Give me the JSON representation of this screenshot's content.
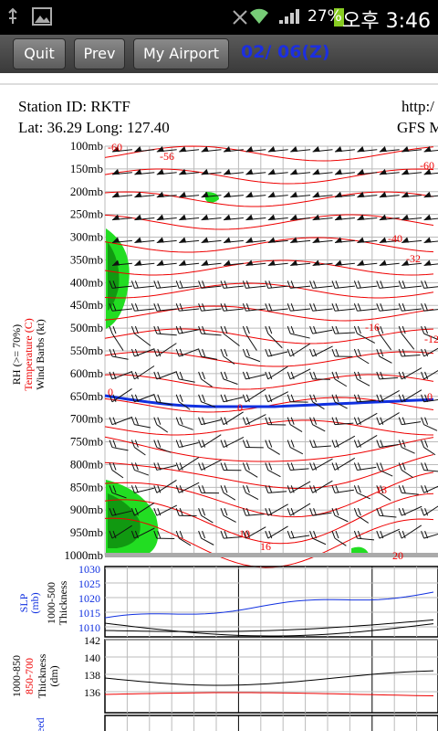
{
  "status_bar": {
    "battery": "27%",
    "time": "오후 3:46"
  },
  "toolbar": {
    "buttons": [
      "Quit",
      "Prev",
      "My Airport"
    ],
    "date": "02/ 06(Z)"
  },
  "header": {
    "station": "Station ID: RKTF",
    "url": "http:/",
    "location": "Lat:  36.29 Long:  127.40",
    "model": "GFS M"
  },
  "sounding": {
    "axis_labels": [
      "RH (>= 70%)",
      "Temperature (C)",
      "Wind Barbs (kt)"
    ],
    "levels": [
      "100mb",
      "150mb",
      "200mb",
      "250mb",
      "300mb",
      "350mb",
      "400mb",
      "450mb",
      "500mb",
      "550mb",
      "600mb",
      "650mb",
      "700mb",
      "750mb",
      "800mb",
      "850mb",
      "900mb",
      "950mb",
      "1000mb"
    ],
    "contour_labels": [
      "-60",
      "-56",
      "-60",
      "-40",
      "-32",
      "-16",
      "-12",
      "0",
      "0",
      "0",
      "10",
      "13",
      "16",
      "20"
    ]
  },
  "slp_panel": {
    "labels": [
      "SLP",
      "(mb)",
      "1000-500",
      "Thickness"
    ],
    "ticks": [
      "1030",
      "1025",
      "1020",
      "1015",
      "1010"
    ]
  },
  "thickness_panel": {
    "labels": [
      "1000-850",
      "850-700",
      "Thickness",
      "(dm)"
    ],
    "ticks": [
      "142",
      "140",
      "138",
      "136"
    ]
  },
  "speed_panel": {
    "label": "Speed"
  }
}
